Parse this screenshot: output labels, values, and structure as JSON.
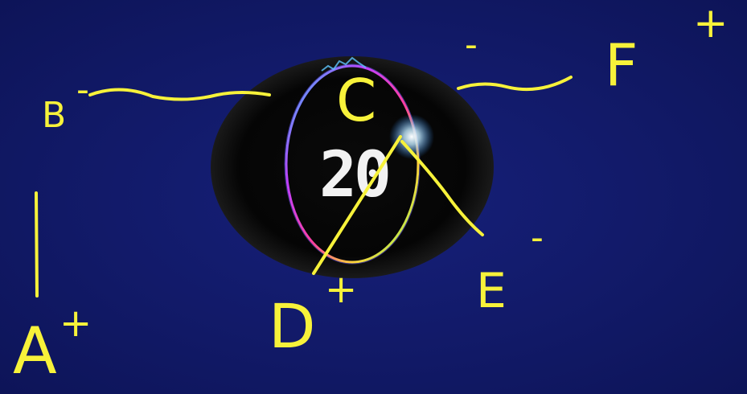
{
  "timer": {
    "value": "20"
  },
  "colors": {
    "background": "#121a66",
    "ink": "#f7f23a",
    "timer_digits": "#f2f2f2",
    "badge": "#050505"
  },
  "annotations": {
    "A": "A",
    "A_sign": "+",
    "B": "B",
    "B_sign": "-",
    "C": "C",
    "C_sign": "-",
    "D": "D",
    "D_sign": "+",
    "E": "E",
    "E_sign": "-",
    "F": "F",
    "F_sign": "+"
  }
}
